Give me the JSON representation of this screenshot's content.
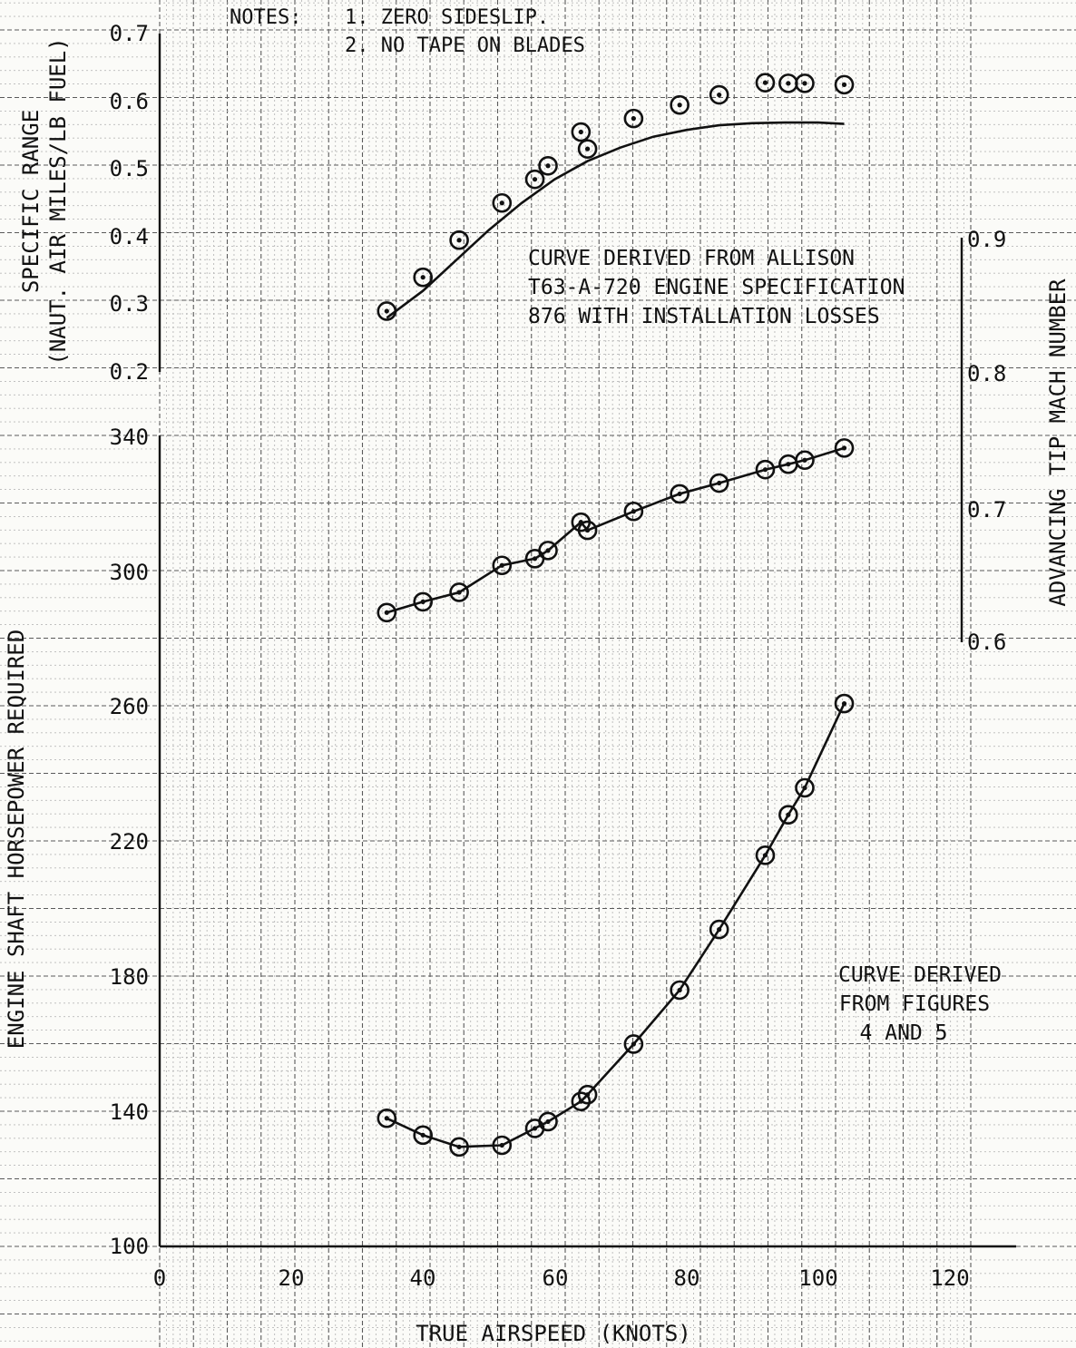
{
  "notes": {
    "heading": "NOTES:",
    "items": [
      "1.  ZERO SIDESLIP.",
      "2.  NO TAPE ON BLADES"
    ]
  },
  "chart_data": [
    {
      "type": "scatter",
      "title": "",
      "xlabel": "TRUE AIRSPEED (KNOTS)",
      "ylabel_line1": "SPECIFIC RANGE",
      "ylabel_line2": "(NAUT. AIR MILES/LB FUEL)",
      "xlim": [
        0,
        130
      ],
      "ylim": [
        0.2,
        0.7
      ],
      "y_ticks": [
        "0.2",
        "0.3",
        "0.4",
        "0.5",
        "0.6",
        "0.7"
      ],
      "annotation": [
        "CURVE DERIVED FROM ALLISON",
        "T63-A-720 ENGINE SPECIFICATION",
        "876 WITH INSTALLATION LOSSES"
      ],
      "series": [
        {
          "kind": "points",
          "x": [
            34.5,
            40,
            45.5,
            52,
            57,
            59,
            64,
            65,
            72,
            79,
            85,
            92,
            95.5,
            98,
            104
          ],
          "y": [
            0.29,
            0.34,
            0.395,
            0.45,
            0.485,
            0.505,
            0.555,
            0.53,
            0.575,
            0.595,
            0.61,
            0.628,
            0.627,
            0.627,
            0.625
          ]
        },
        {
          "kind": "curve",
          "x": [
            34.5,
            40,
            45,
            50,
            55,
            60,
            65,
            70,
            75,
            80,
            85,
            90,
            95,
            100,
            104
          ],
          "y": [
            0.28,
            0.32,
            0.365,
            0.41,
            0.45,
            0.485,
            0.512,
            0.532,
            0.548,
            0.558,
            0.565,
            0.568,
            0.569,
            0.569,
            0.567
          ]
        }
      ]
    },
    {
      "type": "line",
      "title": "",
      "ylabel": "ADVANCING TIP MACH NUMBER",
      "xlim": [
        0,
        130
      ],
      "ylim": [
        0.6,
        0.9
      ],
      "y_ticks": [
        "0.6",
        "0.7",
        "0.8",
        "0.9"
      ],
      "series": [
        {
          "kind": "points+line",
          "x": [
            34.5,
            40,
            45.5,
            52,
            57,
            59,
            64,
            65,
            72,
            79,
            85,
            92,
            95.5,
            98,
            104
          ],
          "y": [
            0.622,
            0.63,
            0.637,
            0.657,
            0.662,
            0.668,
            0.689,
            0.683,
            0.697,
            0.71,
            0.718,
            0.728,
            0.732,
            0.735,
            0.744
          ]
        }
      ]
    },
    {
      "type": "line",
      "title": "",
      "xlabel": "TRUE AIRSPEED (KNOTS)",
      "ylabel": "ENGINE SHAFT HORSEPOWER REQUIRED",
      "xlim": [
        0,
        130
      ],
      "ylim": [
        100,
        340
      ],
      "x_ticks": [
        "0",
        "20",
        "40",
        "60",
        "80",
        "100",
        "120"
      ],
      "y_ticks": [
        "100",
        "140",
        "180",
        "220",
        "260",
        "300",
        "340"
      ],
      "annotation": [
        "CURVE DERIVED",
        "FROM FIGURES",
        "4 AND 5"
      ],
      "series": [
        {
          "kind": "points+line",
          "x": [
            34.5,
            40,
            45.5,
            52,
            57,
            59,
            64,
            65,
            72,
            79,
            85,
            92,
            95.5,
            98,
            104
          ],
          "y": [
            138,
            133,
            129.5,
            130,
            135,
            137,
            143,
            145,
            160,
            176,
            194,
            216,
            228,
            236,
            261
          ]
        }
      ]
    }
  ]
}
